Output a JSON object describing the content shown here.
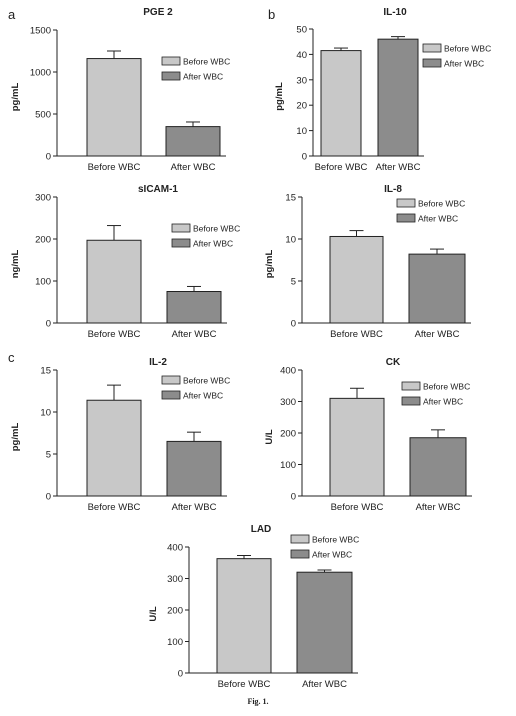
{
  "figure": {
    "caption": "Fig. 1.",
    "panel_letters": [
      "a",
      "b",
      "c"
    ],
    "colors": {
      "before": "#c8c8c8",
      "after": "#8c8c8c",
      "stroke": "#222222"
    }
  },
  "chart_data": [
    {
      "type": "bar",
      "title": "PGE 2",
      "ylabel": "pg/mL",
      "categories": [
        "Before WBC",
        "After WBC"
      ],
      "values": [
        1160,
        350
      ],
      "errors": [
        90,
        55
      ],
      "ylim": [
        0,
        1500
      ],
      "yticks": [
        0,
        500,
        1000,
        1500
      ],
      "legend": [
        "Before WBC",
        "After WBC"
      ],
      "legend_position": "right"
    },
    {
      "type": "bar",
      "title": "IL-10",
      "ylabel": "pg/mL",
      "categories": [
        "Before WBC",
        "After WBC"
      ],
      "values": [
        41.5,
        46
      ],
      "errors": [
        1,
        1
      ],
      "ylim": [
        0,
        50
      ],
      "yticks": [
        0,
        10,
        20,
        30,
        40,
        50
      ],
      "legend": [
        "Before WBC",
        "After WBC"
      ],
      "legend_position": "right"
    },
    {
      "type": "bar",
      "title": "sICAM-1",
      "ylabel": "ng/mL",
      "categories": [
        "Before WBC",
        "After WBC"
      ],
      "values": [
        197,
        75
      ],
      "errors": [
        35,
        12
      ],
      "ylim": [
        0,
        300
      ],
      "yticks": [
        0,
        100,
        200,
        300
      ],
      "legend": [
        "Before WBC",
        "After WBC"
      ],
      "legend_position": "top-right"
    },
    {
      "type": "bar",
      "title": "IL-8",
      "ylabel": "pg/mL",
      "categories": [
        "Before WBC",
        "After WBC"
      ],
      "values": [
        10.3,
        8.2
      ],
      "errors": [
        0.7,
        0.6
      ],
      "ylim": [
        0,
        15
      ],
      "yticks": [
        0,
        5,
        10,
        15
      ],
      "legend": [
        "Before WBC",
        "After WBC"
      ],
      "legend_position": "top-right"
    },
    {
      "type": "bar",
      "title": "IL-2",
      "ylabel": "pg/mL",
      "categories": [
        "Before WBC",
        "After WBC"
      ],
      "values": [
        11.4,
        6.5
      ],
      "errors": [
        1.8,
        1.1
      ],
      "ylim": [
        0,
        15
      ],
      "yticks": [
        0,
        5,
        10,
        15
      ],
      "legend": [
        "Before WBC",
        "After WBC"
      ],
      "legend_position": "top-right"
    },
    {
      "type": "bar",
      "title": "CK",
      "ylabel": "U/L",
      "categories": [
        "Before WBC",
        "After WBC"
      ],
      "values": [
        310,
        185
      ],
      "errors": [
        32,
        25
      ],
      "ylim": [
        0,
        400
      ],
      "yticks": [
        0,
        100,
        200,
        300,
        400
      ],
      "legend": [
        "Before WBC",
        "After WBC"
      ],
      "legend_position": "top-right"
    },
    {
      "type": "bar",
      "title": "LAD",
      "ylabel": "U/L",
      "categories": [
        "Before WBC",
        "After WBC"
      ],
      "values": [
        363,
        320
      ],
      "errors": [
        10,
        7
      ],
      "ylim": [
        0,
        400
      ],
      "yticks": [
        0,
        100,
        200,
        300,
        400
      ],
      "legend": [
        "Before WBC",
        "After WBC"
      ],
      "legend_position": "top-right"
    }
  ]
}
